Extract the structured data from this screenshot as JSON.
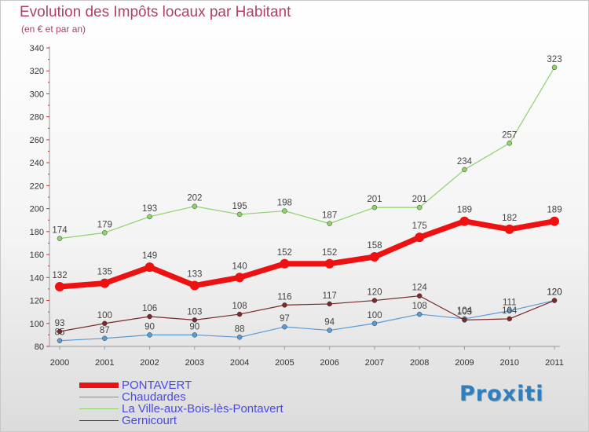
{
  "title": "Evolution des Impôts locaux par Habitant",
  "subtitle": "(en € et par an)",
  "brand": "Proxiti",
  "chart_data": {
    "type": "line",
    "title": "Evolution des Impôts locaux par Habitant",
    "subtitle": "(en € et par an)",
    "xlabel": "",
    "ylabel": "",
    "x": [
      "2000",
      "2001",
      "2002",
      "2003",
      "2004",
      "2005",
      "2006",
      "2007",
      "2008",
      "2009",
      "2010",
      "2011"
    ],
    "x_ticks": [
      "2000",
      "2001",
      "2002",
      "2003",
      "2004",
      "2005",
      "2006",
      "2007",
      "2008",
      "2009",
      "2010",
      "2011"
    ],
    "ylim": [
      80,
      340
    ],
    "y_ticks": [
      "80",
      "100",
      "120",
      "140",
      "160",
      "180",
      "200",
      "220",
      "240",
      "260",
      "280",
      "300",
      "320",
      "340"
    ],
    "grid": false,
    "legend": "bottom-left",
    "series": [
      {
        "name": "PONTAVERT",
        "color": "#ee1111",
        "width": 7,
        "marker": 6,
        "values": [
          132,
          135,
          149,
          133,
          140,
          152,
          152,
          158,
          175,
          189,
          182,
          189
        ]
      },
      {
        "name": "Chaudardes",
        "color": "#5b9bd5",
        "width": 1.2,
        "marker": 3,
        "values": [
          85,
          87,
          90,
          90,
          88,
          97,
          94,
          100,
          108,
          104,
          111,
          120
        ]
      },
      {
        "name": "La Ville-aux-Bois-lès-Pontavert",
        "color": "#8fd16a",
        "width": 1.2,
        "marker": 3,
        "values": [
          174,
          179,
          193,
          202,
          195,
          198,
          187,
          201,
          201,
          234,
          257,
          323
        ]
      },
      {
        "name": "Gernicourt",
        "color": "#7a2a2a",
        "width": 1.2,
        "marker": 3,
        "values": [
          93,
          100,
          106,
          103,
          108,
          116,
          117,
          120,
          124,
          103,
          104,
          120
        ]
      }
    ]
  }
}
